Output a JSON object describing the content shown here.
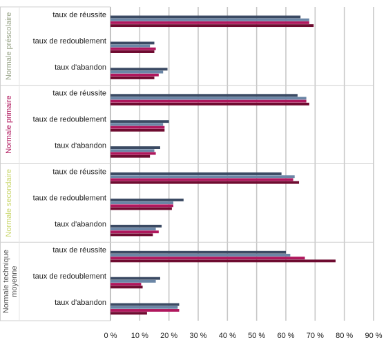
{
  "chart_data": {
    "type": "bar",
    "orientation": "horizontal",
    "xlim": [
      0,
      90
    ],
    "x_ticks": [
      {
        "value": 0,
        "label": "0 %"
      },
      {
        "value": 10,
        "label": "10 %"
      },
      {
        "value": 20,
        "label": "20 %"
      },
      {
        "value": 30,
        "label": "30 %"
      },
      {
        "value": 40,
        "label": "40 %"
      },
      {
        "value": 50,
        "label": "50 %"
      },
      {
        "value": 60,
        "label": "60 %"
      },
      {
        "value": 70,
        "label": "70 %"
      },
      {
        "value": 80,
        "label": "80 %"
      },
      {
        "value": 90,
        "label": "90 %"
      }
    ],
    "grid": true,
    "legend": "none",
    "series_colors": [
      "#3b4a63",
      "#6b86a6",
      "#b0175d",
      "#6e0b30"
    ],
    "groups": [
      {
        "label": "Normale préscolaire",
        "label_color": "#9aa58a",
        "rows": [
          {
            "label": "taux de réussite",
            "values": [
              65,
              68,
              68,
              69.5
            ]
          },
          {
            "label": "taux de redoublement",
            "values": [
              15,
              13.5,
              15.5,
              15
            ]
          },
          {
            "label": "taux d'abandon",
            "values": [
              19.5,
              18,
              16.5,
              15
            ]
          }
        ]
      },
      {
        "label": "Normale primaire",
        "label_color": "#b0175d",
        "rows": [
          {
            "label": "taux de réussite",
            "values": [
              64,
              67,
              67,
              68
            ]
          },
          {
            "label": "taux de redoublement",
            "values": [
              20,
              18,
              18.5,
              18.5
            ]
          },
          {
            "label": "taux d'abandon",
            "values": [
              17,
              15,
              15.5,
              13.5
            ]
          }
        ]
      },
      {
        "label": "Normale secondaire",
        "label_color": "#c9d66b",
        "rows": [
          {
            "label": "taux de réussite",
            "values": [
              58.5,
              63,
              62.5,
              64.5
            ]
          },
          {
            "label": "taux de redoublement",
            "values": [
              25,
              21.5,
              21.5,
              21
            ]
          },
          {
            "label": "taux d'abandon",
            "values": [
              17.5,
              15.5,
              16.5,
              14.5
            ]
          }
        ]
      },
      {
        "label": "Normale technique moyenne",
        "label_lines": [
          "Normale technique",
          "moyenne"
        ],
        "label_color": "#555555",
        "rows": [
          {
            "label": "taux de réussite",
            "values": [
              60,
              61.5,
              66.5,
              77
            ]
          },
          {
            "label": "taux de redoublement",
            "values": [
              17,
              15.5,
              10.5,
              11
            ]
          },
          {
            "label": "taux d'abandon",
            "values": [
              23.5,
              23,
              23.5,
              12.5
            ]
          }
        ]
      }
    ]
  }
}
